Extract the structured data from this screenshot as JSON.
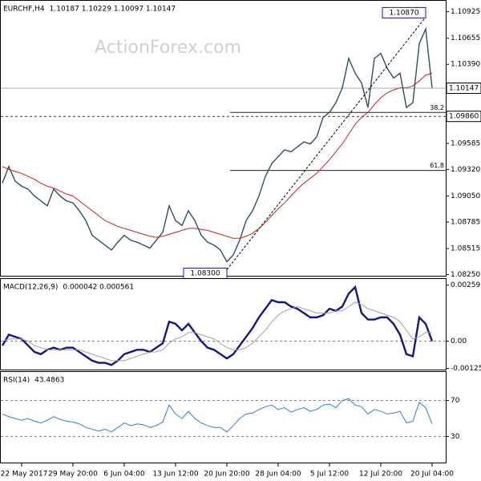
{
  "chart_data": [
    {
      "type": "line",
      "title": "EURCHF,H4",
      "subtitle": "1.10187 1.10229 1.10097 1.10147",
      "watermark": "ActionForex.com",
      "x": [
        0,
        1,
        2,
        3,
        4,
        5,
        6,
        7,
        8,
        9,
        10,
        11,
        12,
        13,
        14,
        15,
        16,
        17,
        18,
        19,
        20,
        21,
        22,
        23,
        24,
        25,
        26,
        27,
        28,
        29,
        30,
        31,
        32,
        33,
        34,
        35,
        36,
        37,
        38,
        39,
        40,
        41,
        42,
        43,
        44,
        45,
        46,
        47,
        48,
        49,
        50,
        51,
        52,
        53,
        54,
        55,
        56,
        57,
        58,
        59,
        60,
        61,
        62,
        63,
        64,
        65,
        66,
        67
      ],
      "ylim": [
        1.0823,
        1.1102
      ],
      "yticks": [
        1.10925,
        1.10655,
        {
          "value": 1.1039,
          "label": "1.10390"
        },
        1.09585,
        {
          "value": 1.0932,
          "label": "1.09320"
        },
        {
          "value": 1.0905,
          "label": "1.09050"
        },
        1.08785,
        1.08515,
        {
          "value": 1.0825,
          "label": "1.08250"
        }
      ],
      "series": [
        {
          "name": "EURCHF",
          "color": "#2f4f5f",
          "values": [
            1.0918,
            1.0935,
            1.092,
            1.0915,
            1.0912,
            1.0905,
            1.09,
            1.0895,
            1.0912,
            1.0905,
            1.09,
            1.0898,
            1.089,
            1.088,
            1.0865,
            1.086,
            1.0855,
            1.085,
            1.0858,
            1.0865,
            1.086,
            1.0858,
            1.0855,
            1.0852,
            1.086,
            1.0868,
            1.0895,
            1.088,
            1.0875,
            1.089,
            1.088,
            1.0865,
            1.0858,
            1.0855,
            1.085,
            1.0838,
            1.0845,
            1.086,
            1.088,
            1.089,
            1.0905,
            1.0925,
            1.0938,
            1.0945,
            1.0952,
            1.095,
            1.0955,
            1.096,
            1.0958,
            1.0965,
            1.0985,
            1.099,
            1.1,
            1.1015,
            1.1045,
            1.103,
            1.102,
            1.0995,
            1.1045,
            1.105,
            1.1035,
            1.1025,
            1.103,
            1.0995,
            1.1,
            1.106,
            1.1075,
            1.1015
          ]
        },
        {
          "name": "MA",
          "color": "#cc2020",
          "values": [
            1.0935,
            1.0932,
            1.093,
            1.0928,
            1.0925,
            1.0922,
            1.0918,
            1.0915,
            1.0913,
            1.091,
            1.0907,
            1.0905,
            1.09,
            1.0895,
            1.089,
            1.0885,
            1.088,
            1.0877,
            1.0874,
            1.0872,
            1.087,
            1.0868,
            1.0866,
            1.0864,
            1.0863,
            1.0864,
            1.0866,
            1.0868,
            1.087,
            1.0872,
            1.0872,
            1.0871,
            1.087,
            1.0868,
            1.0866,
            1.0864,
            1.0862,
            1.0862,
            1.0864,
            1.0867,
            1.0872,
            1.0878,
            1.0885,
            1.0892,
            1.0898,
            1.0905,
            1.0912,
            1.0918,
            1.0923,
            1.0928,
            1.0935,
            1.0942,
            1.095,
            1.0958,
            1.0968,
            1.0978,
            1.0985,
            1.099,
            1.0998,
            1.1005,
            1.101,
            1.1013,
            1.1015,
            1.1015,
            1.1017,
            1.1022,
            1.1028,
            1.103
          ]
        }
      ],
      "levels": [
        {
          "value": 1.10147,
          "label": "1.10147",
          "dashed": false
        },
        {
          "value": 1.0986,
          "label": "1.09860",
          "dashed": true
        }
      ],
      "fib_levels": [
        {
          "value": 1.099,
          "label": "38.2"
        },
        {
          "value": 1.0931,
          "label": "61.8"
        }
      ],
      "extremes": [
        {
          "x": 35,
          "value": 1.083,
          "label": "1.08300"
        },
        {
          "x": 66,
          "value": 1.1087,
          "label": "1.10870"
        }
      ]
    },
    {
      "type": "line",
      "title": "MACD(12,26,9)",
      "subtitle": "0.000042 0.000561",
      "x": [
        0,
        1,
        2,
        3,
        4,
        5,
        6,
        7,
        8,
        9,
        10,
        11,
        12,
        13,
        14,
        15,
        16,
        17,
        18,
        19,
        20,
        21,
        22,
        23,
        24,
        25,
        26,
        27,
        28,
        29,
        30,
        31,
        32,
        33,
        34,
        35,
        36,
        37,
        38,
        39,
        40,
        41,
        42,
        43,
        44,
        45,
        46,
        47,
        48,
        49,
        50,
        51,
        52,
        53,
        54,
        55,
        56,
        57,
        58,
        59,
        60,
        61,
        62,
        63,
        64,
        65,
        66,
        67
      ],
      "ylim": [
        -0.00135,
        0.0028
      ],
      "yticks": [
        0.00259,
        {
          "value": 0,
          "label": "0.00"
        },
        -0.001254
      ],
      "zero_line": true,
      "series": [
        {
          "name": "MACD",
          "color": "#14148c",
          "bold": true,
          "values": [
            -0.0002,
            0.0003,
            0.0002,
            0.0001,
            -0.0002,
            -0.0005,
            -0.0006,
            -0.0004,
            -0.0003,
            -0.0004,
            -0.0003,
            -0.0003,
            -0.0005,
            -0.0007,
            -0.0009,
            -0.001,
            -0.001,
            -0.0011,
            -0.0009,
            -0.0006,
            -0.0005,
            -0.0004,
            -0.0004,
            -0.0005,
            -0.0003,
            -0.0001,
            0.0009,
            0.0008,
            0.0005,
            0.0008,
            0.0004,
            0.0,
            -0.0003,
            -0.0004,
            -0.0006,
            -0.0008,
            -0.0006,
            -0.0002,
            0.0002,
            0.0006,
            0.0011,
            0.0015,
            0.0019,
            0.0018,
            0.0018,
            0.0016,
            0.0015,
            0.0013,
            0.0011,
            0.0011,
            0.0012,
            0.0015,
            0.0014,
            0.0016,
            0.0022,
            0.0025,
            0.0013,
            0.001,
            0.001,
            0.0011,
            0.0011,
            0.0008,
            0.0003,
            -0.0006,
            -0.0007,
            0.0011,
            0.0008,
            0.0
          ]
        },
        {
          "name": "Signal",
          "color": "#a0a0a0",
          "bold": false,
          "values": [
            0.0,
            0.0001,
            0.0001,
            0.0001,
            0.0,
            -0.0002,
            -0.0003,
            -0.0004,
            -0.0004,
            -0.0004,
            -0.0004,
            -0.0004,
            -0.0004,
            -0.0005,
            -0.0006,
            -0.0007,
            -0.0008,
            -0.0009,
            -0.0009,
            -0.0009,
            -0.0008,
            -0.0007,
            -0.0006,
            -0.0005,
            -0.0005,
            -0.0004,
            -0.0001,
            0.0001,
            0.0002,
            0.0004,
            0.0004,
            0.0003,
            0.0002,
            0.0001,
            -0.0001,
            -0.0003,
            -0.0004,
            -0.0004,
            -0.0003,
            -0.0001,
            0.0002,
            0.0005,
            0.0009,
            0.0012,
            0.0014,
            0.0015,
            0.0016,
            0.0015,
            0.0014,
            0.0013,
            0.0013,
            0.0013,
            0.0014,
            0.0014,
            0.0016,
            0.0018,
            0.0017,
            0.0015,
            0.0014,
            0.0013,
            0.0012,
            0.0011,
            0.0009,
            0.0005,
            0.0001,
            0.0002,
            0.0004,
            0.0004
          ]
        }
      ]
    },
    {
      "type": "line",
      "title": "RSI(14)",
      "subtitle": "43.4863",
      "x": [
        0,
        1,
        2,
        3,
        4,
        5,
        6,
        7,
        8,
        9,
        10,
        11,
        12,
        13,
        14,
        15,
        16,
        17,
        18,
        19,
        20,
        21,
        22,
        23,
        24,
        25,
        26,
        27,
        28,
        29,
        30,
        31,
        32,
        33,
        34,
        35,
        36,
        37,
        38,
        39,
        40,
        41,
        42,
        43,
        44,
        45,
        46,
        47,
        48,
        49,
        50,
        51,
        52,
        53,
        54,
        55,
        56,
        57,
        58,
        59,
        60,
        61,
        62,
        63,
        64,
        65,
        66,
        67
      ],
      "ylim": [
        0,
        100
      ],
      "yticks": [
        70,
        30
      ],
      "grid": true,
      "xticks": [
        {
          "value": 3,
          "label": "22 May 2017"
        },
        {
          "value": 11,
          "label": "29 May 20:00"
        },
        {
          "value": 19,
          "label": "6 Jun 04:00"
        },
        {
          "value": 27,
          "label": "13 Jun 12:00"
        },
        {
          "value": 35,
          "label": "20 Jun 20:00"
        },
        {
          "value": 43,
          "label": "28 Jun 04:00"
        },
        {
          "value": 51,
          "label": "5 Jul 12:00"
        },
        {
          "value": 59,
          "label": "12 Jul 20:00"
        },
        {
          "value": 67,
          "label": "20 Jul 04:00"
        }
      ],
      "series": [
        {
          "name": "RSI",
          "color": "#2f7fd8",
          "bold": false,
          "values": [
            55,
            52,
            50,
            48,
            50,
            47,
            45,
            48,
            52,
            49,
            47,
            46,
            44,
            40,
            38,
            36,
            38,
            35,
            40,
            45,
            42,
            44,
            43,
            40,
            42,
            46,
            65,
            55,
            50,
            58,
            50,
            45,
            42,
            40,
            40,
            35,
            42,
            50,
            55,
            56,
            60,
            63,
            65,
            60,
            62,
            57,
            60,
            62,
            58,
            60,
            65,
            66,
            62,
            70,
            72,
            65,
            63,
            55,
            60,
            58,
            55,
            56,
            58,
            45,
            47,
            68,
            62,
            44
          ]
        }
      ]
    }
  ]
}
